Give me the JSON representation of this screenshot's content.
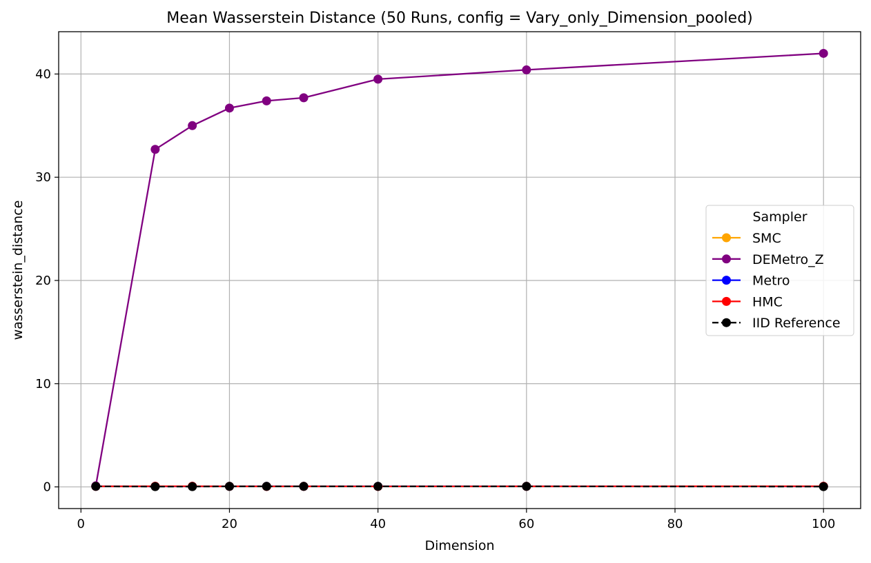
{
  "chart_data": {
    "type": "line",
    "title": "Mean Wasserstein Distance (50 Runs, config = Vary_only_Dimension_pooled)",
    "xlabel": "Dimension",
    "ylabel": "wasserstein_distance",
    "xlim": [
      -3,
      105
    ],
    "ylim": [
      -2.1,
      44.1
    ],
    "xticks": [
      0,
      20,
      40,
      60,
      80,
      100
    ],
    "yticks": [
      0,
      10,
      20,
      30,
      40
    ],
    "grid": true,
    "legend": {
      "title": "Sampler",
      "placement": "center-right"
    },
    "x": [
      2,
      10,
      15,
      20,
      25,
      30,
      40,
      60,
      100
    ],
    "series": [
      {
        "name": "SMC",
        "color": "#ffa500",
        "dashed": false,
        "values": [
          0.05,
          0.05,
          0.05,
          0.05,
          0.05,
          0.05,
          0.05,
          0.05,
          0.05
        ]
      },
      {
        "name": "DEMetro_Z",
        "color": "#800080",
        "dashed": false,
        "values": [
          0.1,
          32.7,
          35.0,
          36.7,
          37.4,
          37.7,
          39.5,
          40.4,
          42.0
        ]
      },
      {
        "name": "Metro",
        "color": "#0000ff",
        "dashed": false,
        "values": [
          0.05,
          0.05,
          0.05,
          0.05,
          0.05,
          0.05,
          0.05,
          0.05,
          0.05
        ]
      },
      {
        "name": "HMC",
        "color": "#ff0000",
        "dashed": false,
        "values": [
          0.05,
          0.06,
          0.06,
          0.05,
          0.04,
          0.05,
          0.04,
          0.05,
          0.06
        ]
      },
      {
        "name": "IID Reference",
        "color": "#000000",
        "dashed": true,
        "values": [
          0.05,
          0.03,
          0.03,
          0.05,
          0.05,
          0.05,
          0.05,
          0.05,
          0.03
        ]
      }
    ]
  }
}
